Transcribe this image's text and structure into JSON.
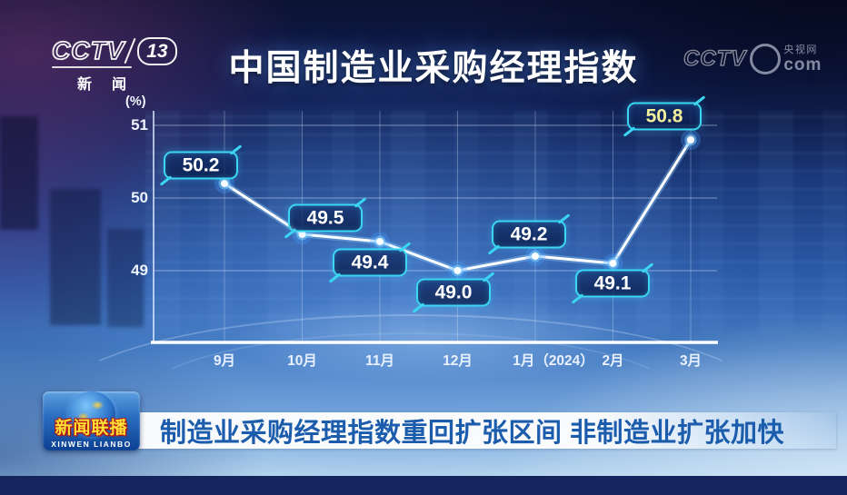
{
  "colors": {
    "accent_cyan": "#3bd6f2",
    "highlight_yellow": "#f2ef9a",
    "ticker_text_blue": "#1c5cad",
    "logo_title_yellow": "#ffdf33",
    "line_white": "#ffffff"
  },
  "header": {
    "channel_logo": {
      "network": "CCTV",
      "channel_number": "13",
      "channel_name": "新闻"
    },
    "watermark": {
      "network": "CCTV",
      "site_name": "央视网",
      "domain": "com"
    }
  },
  "chart_data": {
    "type": "line",
    "title": "中国制造业采购经理指数",
    "unit_label": "(%)",
    "categories": [
      "9月",
      "10月",
      "11月",
      "12月",
      "1月（2024）",
      "2月",
      "3月"
    ],
    "values": [
      50.2,
      49.5,
      49.4,
      49.0,
      49.2,
      49.1,
      50.8
    ],
    "highlight_index": 6,
    "yticks": [
      51,
      50,
      49
    ],
    "ylim": [
      48,
      51.3
    ],
    "grid": true,
    "xlabel": "",
    "ylabel": "",
    "line_color": "#ffffff",
    "data_label_color": "#ffffff",
    "highlight_label_color": "#f2ef9a",
    "badge_border_color": "#3bd6f2"
  },
  "footer": {
    "program_logo": {
      "title": "新闻联播",
      "subtitle": "XINWEN LIANBO"
    },
    "ticker": "制造业采购经理指数重回扩张区间 非制造业扩张加快"
  }
}
